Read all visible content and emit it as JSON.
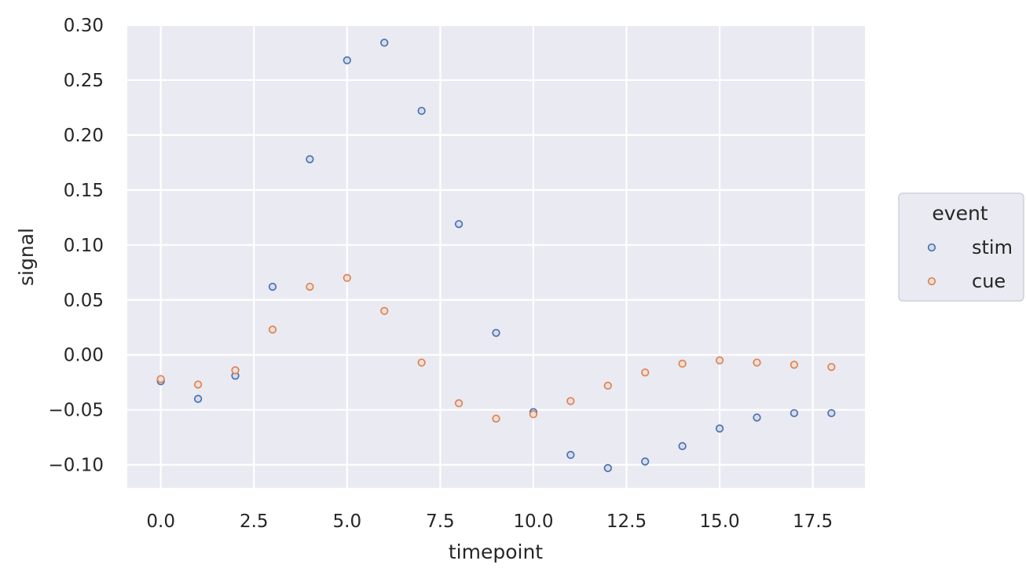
{
  "chart_data": {
    "type": "scatter",
    "xlabel": "timepoint",
    "ylabel": "signal",
    "xlim": [
      -0.9,
      18.9
    ],
    "ylim": [
      -0.121,
      0.3
    ],
    "xticks": [
      "0.0",
      "2.5",
      "5.0",
      "7.5",
      "10.0",
      "12.5",
      "15.0",
      "17.5"
    ],
    "xtick_values": [
      0,
      2.5,
      5,
      7.5,
      10,
      12.5,
      15,
      17.5
    ],
    "yticks": [
      "0.30",
      "0.25",
      "0.20",
      "0.15",
      "0.10",
      "0.05",
      "0.00",
      "−0.05",
      "−0.10"
    ],
    "ytick_values": [
      0.3,
      0.25,
      0.2,
      0.15,
      0.1,
      0.05,
      0.0,
      -0.05,
      -0.1
    ],
    "grid": true,
    "legend": {
      "title": "event",
      "placement": "right",
      "entries": [
        "stim",
        "cue"
      ]
    },
    "series": [
      {
        "name": "stim",
        "color": "#4c72b0",
        "x": [
          0,
          1,
          2,
          3,
          4,
          5,
          6,
          7,
          8,
          9,
          10,
          11,
          12,
          13,
          14,
          15,
          16,
          17,
          18
        ],
        "y": [
          -0.024,
          -0.04,
          -0.019,
          0.062,
          0.178,
          0.268,
          0.284,
          0.222,
          0.119,
          0.02,
          -0.052,
          -0.091,
          -0.103,
          -0.097,
          -0.083,
          -0.067,
          -0.057,
          -0.053,
          -0.053
        ]
      },
      {
        "name": "cue",
        "color": "#dd8452",
        "x": [
          0,
          1,
          2,
          3,
          4,
          5,
          6,
          7,
          8,
          9,
          10,
          11,
          12,
          13,
          14,
          15,
          16,
          17,
          18
        ],
        "y": [
          -0.022,
          -0.027,
          -0.014,
          0.023,
          0.062,
          0.07,
          0.04,
          -0.007,
          -0.044,
          -0.058,
          -0.054,
          -0.042,
          -0.028,
          -0.016,
          -0.008,
          -0.005,
          -0.007,
          -0.009,
          -0.011
        ]
      }
    ]
  }
}
